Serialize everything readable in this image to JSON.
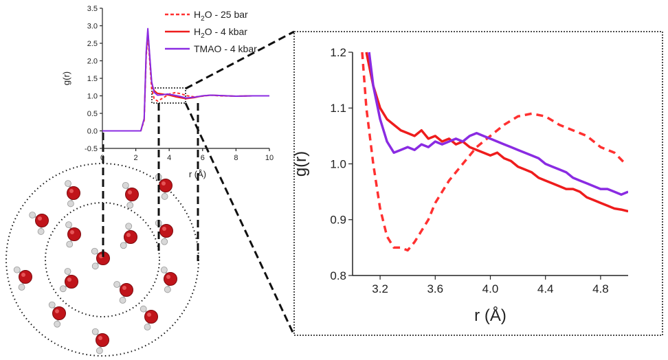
{
  "colors": {
    "h2o_25bar": "#ff3030",
    "h2o_4kbar": "#ee1c1c",
    "tmao_4kbar": "#8a2be2",
    "oxygen": "#c0141a",
    "hydrogen": "#d8d8d8"
  },
  "chart_data": [
    {
      "type": "line",
      "panel": "full",
      "xlabel": "r (Å)",
      "ylabel": "g(r)",
      "xlim": [
        0,
        10
      ],
      "ylim": [
        -0.5,
        3.5
      ],
      "xticks": [
        "0",
        "2",
        "4",
        "6",
        "8",
        "10"
      ],
      "yticks": [
        "-0.5",
        "0.0",
        "0.5",
        "1.0",
        "1.5",
        "2.0",
        "2.5",
        "3.0",
        "3.5"
      ],
      "grid": false,
      "legend": "top-right, outside",
      "series": [
        {
          "name": "H2O - 25 bar",
          "style": "dashed",
          "x": [
            0,
            2.3,
            2.5,
            2.62,
            2.72,
            2.82,
            2.95,
            3.1,
            3.3,
            3.6,
            4.0,
            4.35,
            4.7,
            5.0,
            5.5,
            6.0,
            6.5,
            7.0,
            8.0,
            9.0,
            10.0
          ],
          "y": [
            0,
            0,
            0.3,
            2.1,
            2.75,
            2.1,
            1.2,
            0.92,
            0.85,
            0.93,
            1.05,
            1.09,
            1.06,
            1.01,
            0.97,
            0.99,
            1.02,
            1.0,
            0.99,
            1.0,
            1.0
          ]
        },
        {
          "name": "H2O - 4 kbar",
          "style": "solid",
          "x": [
            0,
            2.3,
            2.5,
            2.62,
            2.72,
            2.82,
            2.95,
            3.1,
            3.3,
            3.6,
            4.0,
            4.4,
            5.0,
            5.5,
            6.0,
            6.5,
            7.0,
            8.0,
            9.0,
            10.0
          ],
          "y": [
            0,
            0,
            0.35,
            2.2,
            2.85,
            2.2,
            1.35,
            1.15,
            1.07,
            1.05,
            1.02,
            0.97,
            0.92,
            0.95,
            1.0,
            1.02,
            1.01,
            0.99,
            1.0,
            1.0
          ]
        },
        {
          "name": "TMAO - 4 kbar",
          "style": "solid",
          "x": [
            0,
            2.3,
            2.5,
            2.62,
            2.72,
            2.82,
            2.95,
            3.1,
            3.3,
            3.6,
            3.9,
            4.2,
            4.6,
            5.0,
            5.5,
            6.0,
            6.5,
            7.0,
            8.0,
            9.0,
            10.0
          ],
          "y": [
            0,
            0,
            0.35,
            2.25,
            2.92,
            2.25,
            1.4,
            1.1,
            1.02,
            1.03,
            1.05,
            1.03,
            0.99,
            0.94,
            0.96,
            1.0,
            1.02,
            1.01,
            0.99,
            1.0,
            1.0
          ]
        }
      ]
    },
    {
      "type": "line",
      "panel": "zoom",
      "xlabel": "r (Å)",
      "ylabel": "g(r)",
      "xlim": [
        3.0,
        5.0
      ],
      "ylim": [
        0.8,
        1.2
      ],
      "xticks": [
        "3.2",
        "3.6",
        "4.0",
        "4.4",
        "4.8"
      ],
      "yticks": [
        "0.8",
        "0.9",
        "1.0",
        "1.1",
        "1.2"
      ],
      "grid": false,
      "series": [
        {
          "name": "H2O - 25 bar",
          "style": "dashed",
          "x": [
            3.07,
            3.1,
            3.15,
            3.2,
            3.25,
            3.3,
            3.35,
            3.4,
            3.45,
            3.5,
            3.55,
            3.6,
            3.7,
            3.8,
            3.9,
            4.0,
            4.1,
            4.2,
            4.3,
            4.4,
            4.5,
            4.6,
            4.7,
            4.8,
            4.9,
            4.98
          ],
          "y": [
            1.2,
            1.1,
            1.0,
            0.92,
            0.87,
            0.85,
            0.85,
            0.845,
            0.86,
            0.88,
            0.9,
            0.93,
            0.97,
            1.0,
            1.03,
            1.05,
            1.07,
            1.085,
            1.09,
            1.085,
            1.07,
            1.06,
            1.05,
            1.03,
            1.02,
            1.0
          ]
        },
        {
          "name": "H2O - 4 kbar",
          "style": "solid",
          "x": [
            3.1,
            3.15,
            3.2,
            3.25,
            3.3,
            3.35,
            3.4,
            3.45,
            3.5,
            3.55,
            3.6,
            3.65,
            3.7,
            3.75,
            3.8,
            3.85,
            3.9,
            3.95,
            4.0,
            4.05,
            4.1,
            4.15,
            4.2,
            4.25,
            4.3,
            4.35,
            4.4,
            4.45,
            4.5,
            4.55,
            4.6,
            4.65,
            4.7,
            4.75,
            4.8,
            4.85,
            4.9,
            4.95,
            5.0
          ],
          "y": [
            1.2,
            1.14,
            1.1,
            1.08,
            1.07,
            1.06,
            1.055,
            1.05,
            1.06,
            1.045,
            1.05,
            1.04,
            1.045,
            1.035,
            1.04,
            1.03,
            1.025,
            1.02,
            1.015,
            1.02,
            1.01,
            1.005,
            0.995,
            0.99,
            0.985,
            0.975,
            0.97,
            0.965,
            0.96,
            0.955,
            0.955,
            0.95,
            0.94,
            0.935,
            0.93,
            0.925,
            0.92,
            0.918,
            0.915
          ]
        },
        {
          "name": "TMAO - 4 kbar",
          "style": "solid",
          "x": [
            3.12,
            3.15,
            3.2,
            3.25,
            3.3,
            3.35,
            3.4,
            3.45,
            3.5,
            3.55,
            3.6,
            3.65,
            3.7,
            3.75,
            3.8,
            3.85,
            3.9,
            3.95,
            4.0,
            4.05,
            4.1,
            4.15,
            4.2,
            4.25,
            4.3,
            4.35,
            4.4,
            4.45,
            4.5,
            4.55,
            4.6,
            4.65,
            4.7,
            4.75,
            4.8,
            4.85,
            4.9,
            4.95,
            5.0
          ],
          "y": [
            1.2,
            1.14,
            1.08,
            1.04,
            1.02,
            1.025,
            1.03,
            1.025,
            1.035,
            1.03,
            1.04,
            1.035,
            1.04,
            1.045,
            1.04,
            1.05,
            1.055,
            1.05,
            1.045,
            1.04,
            1.035,
            1.03,
            1.025,
            1.02,
            1.015,
            1.01,
            1.0,
            0.995,
            0.99,
            0.985,
            0.975,
            0.97,
            0.965,
            0.96,
            0.955,
            0.955,
            0.95,
            0.945,
            0.95
          ]
        }
      ]
    }
  ],
  "legend": [
    {
      "sym": "H",
      "sub": "2",
      "rest": "O - 25 bar",
      "style": "dashed",
      "color": "#ff3030"
    },
    {
      "sym": "H",
      "sub": "2",
      "rest": "O - 4 kbar",
      "style": "solid",
      "color": "#ee1c1c"
    },
    {
      "sym": "TMAO - 4 kbar",
      "sub": "",
      "rest": "",
      "style": "solid",
      "color": "#8a2be2"
    }
  ],
  "molecule_illustration": {
    "description_icon": "water-molecule-shells-icon"
  }
}
